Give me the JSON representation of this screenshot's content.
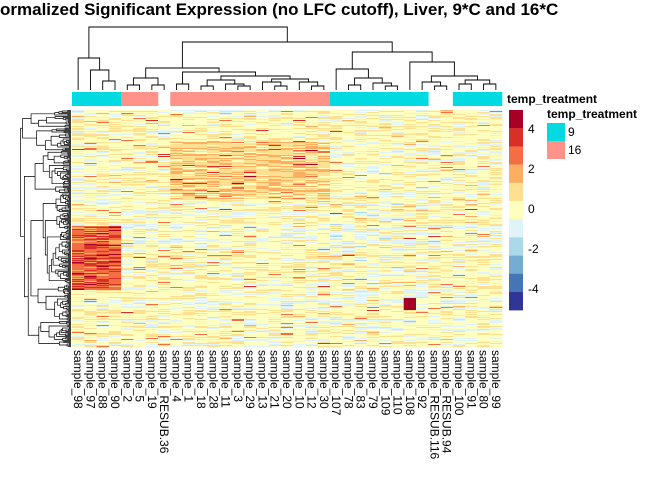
{
  "chart_data": {
    "type": "heatmap",
    "title": "ormalized Significant Expression (no LFC cutoff), Liver, 9*C and 16*C",
    "columns": [
      "sample_98",
      "sample_97",
      "sample_88",
      "sample_90",
      "sample_2",
      "sample_5",
      "sample_19",
      "sample_RESUB.36",
      "sample_4",
      "sample_1",
      "sample_18",
      "sample_28",
      "sample_11",
      "sample_3",
      "sample_29",
      "sample_13",
      "sample_21",
      "sample_20",
      "sample_10",
      "sample_12",
      "sample_30",
      "sample_107",
      "sample_78",
      "sample_83",
      "sample_79",
      "sample_109",
      "sample_110",
      "sample_108",
      "sample_92",
      "sample_RESUB.116",
      "sample_RESUB.94",
      "sample_100",
      "sample_91",
      "sample_80",
      "sample_99"
    ],
    "annotation": {
      "name": "temp_treatment",
      "values": [
        "9",
        "9",
        "9",
        "9",
        "16",
        "16",
        "16",
        null,
        "16",
        "16",
        "16",
        "16",
        "16",
        "16",
        "16",
        "16",
        "16",
        "16",
        "16",
        "16",
        "16",
        "9",
        "9",
        "9",
        "9",
        "9",
        "9",
        "9",
        "9",
        null,
        null,
        "9",
        "9",
        "9",
        "9"
      ],
      "levels": [
        {
          "label": "9",
          "color": "#00DAE0"
        },
        {
          "label": "16",
          "color": "#FF9289"
        }
      ]
    },
    "color_scale": {
      "range": [
        -5,
        5
      ],
      "ticks": [
        4,
        2,
        0,
        -2,
        -4
      ],
      "colors": [
        "#A50026",
        "#D73027",
        "#F46D43",
        "#FDAE61",
        "#FEE090",
        "#FFFFBF",
        "#E0F3F8",
        "#ABD9E9",
        "#74ADD1",
        "#4575B4",
        "#313695"
      ]
    },
    "row_dendrogram": true,
    "column_dendrogram": true
  }
}
